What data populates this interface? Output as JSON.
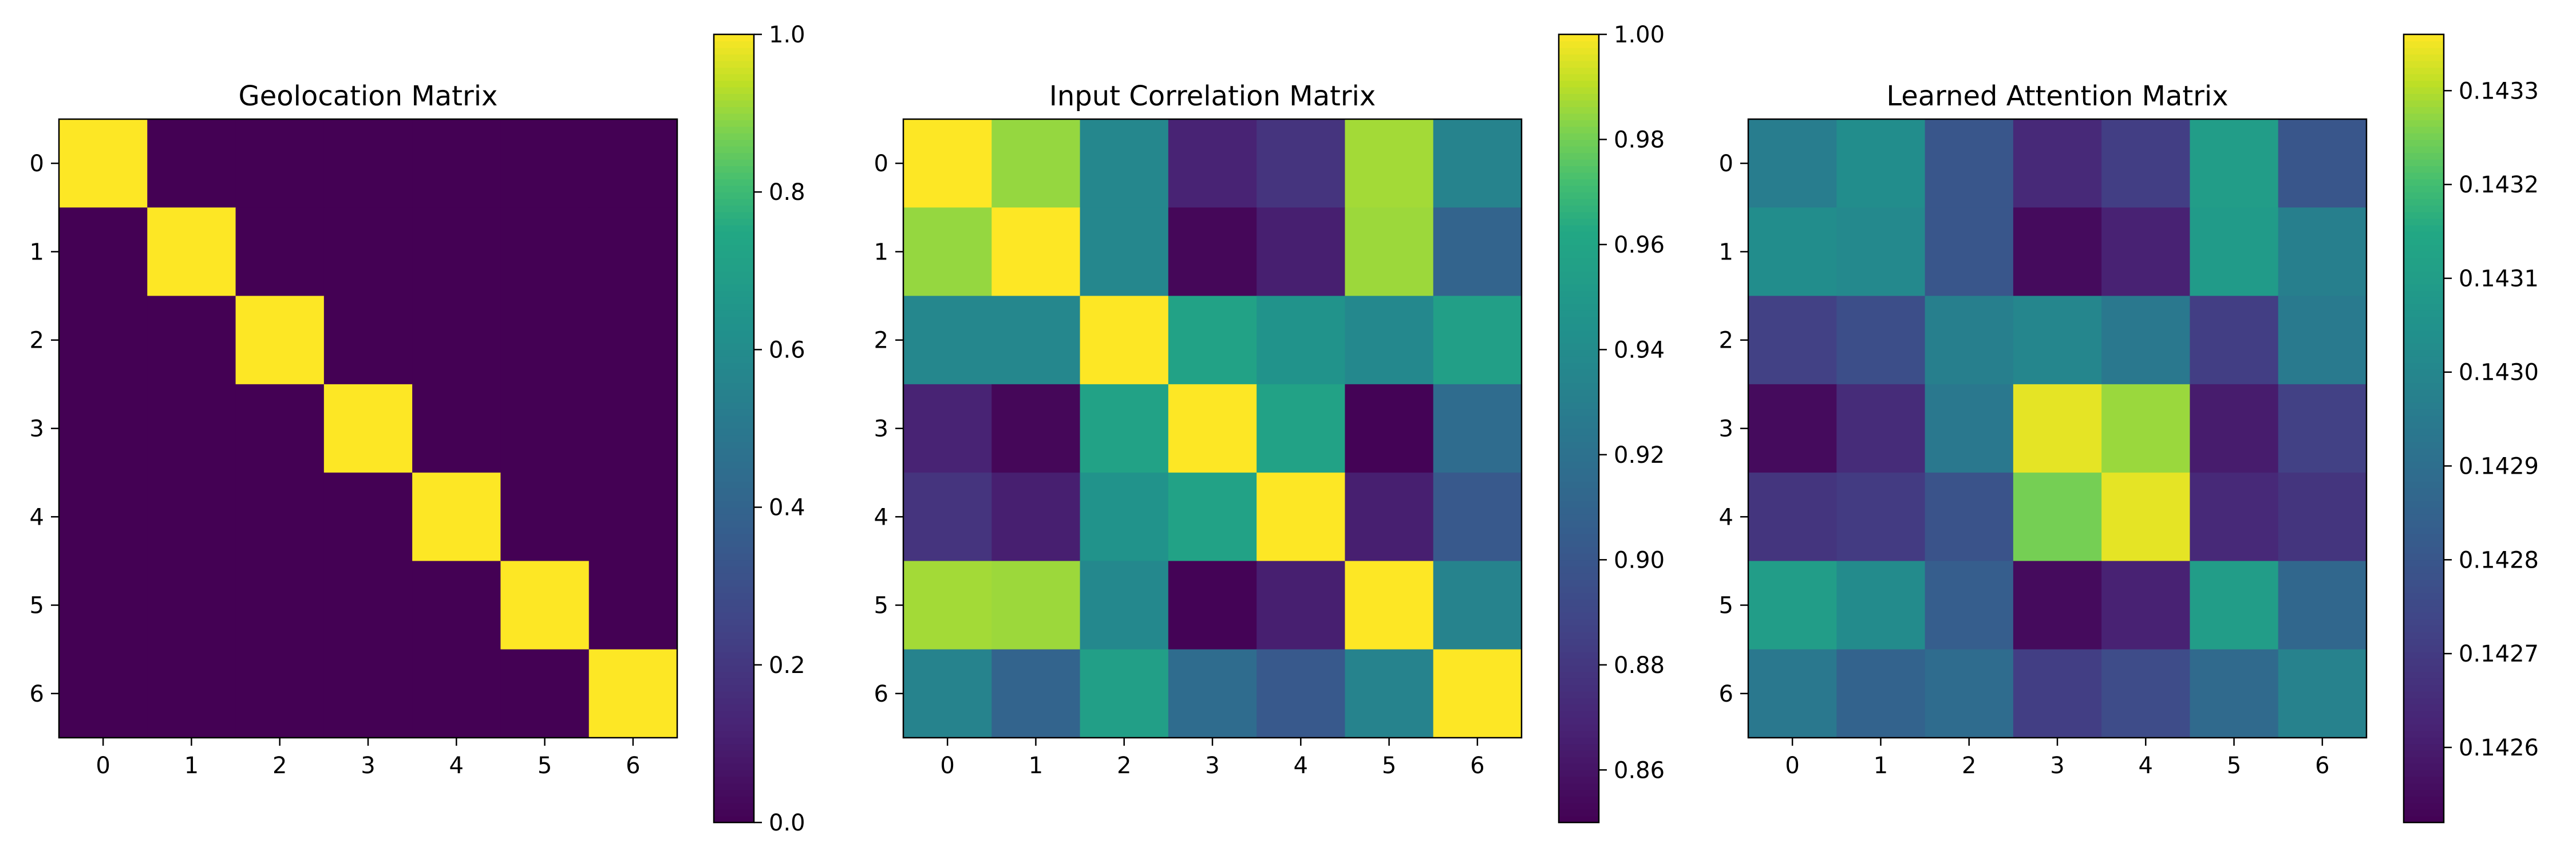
{
  "chart_data": [
    {
      "type": "heatmap",
      "title": "Geolocation Matrix",
      "x_ticks": [
        "0",
        "1",
        "2",
        "3",
        "4",
        "5",
        "6"
      ],
      "y_ticks": [
        "0",
        "1",
        "2",
        "3",
        "4",
        "5",
        "6"
      ],
      "values": [
        [
          1,
          0,
          0,
          0,
          0,
          0,
          0
        ],
        [
          0,
          1,
          0,
          0,
          0,
          0,
          0
        ],
        [
          0,
          0,
          1,
          0,
          0,
          0,
          0
        ],
        [
          0,
          0,
          0,
          1,
          0,
          0,
          0
        ],
        [
          0,
          0,
          0,
          0,
          1,
          0,
          0
        ],
        [
          0,
          0,
          0,
          0,
          0,
          1,
          0
        ],
        [
          0,
          0,
          0,
          0,
          0,
          0,
          1
        ]
      ],
      "colormap": "viridis",
      "vmin": 0.0,
      "vmax": 1.0,
      "colorbar_ticks": [
        0.0,
        0.2,
        0.4,
        0.6,
        0.8,
        1.0
      ],
      "colorbar_tick_labels": [
        "0.0",
        "0.2",
        "0.4",
        "0.6",
        "0.8",
        "1.0"
      ]
    },
    {
      "type": "heatmap",
      "title": "Input Correlation Matrix",
      "x_ticks": [
        "0",
        "1",
        "2",
        "3",
        "4",
        "5",
        "6"
      ],
      "y_ticks": [
        "0",
        "1",
        "2",
        "3",
        "4",
        "5",
        "6"
      ],
      "values": [
        [
          1.0,
          0.985,
          0.936,
          0.868,
          0.878,
          0.987,
          0.933
        ],
        [
          0.985,
          1.0,
          0.936,
          0.853,
          0.866,
          0.986,
          0.91
        ],
        [
          0.936,
          0.936,
          1.0,
          0.958,
          0.945,
          0.937,
          0.955
        ],
        [
          0.868,
          0.853,
          0.958,
          1.0,
          0.958,
          0.851,
          0.916
        ],
        [
          0.878,
          0.866,
          0.945,
          0.958,
          1.0,
          0.866,
          0.902
        ],
        [
          0.987,
          0.986,
          0.937,
          0.851,
          0.866,
          1.0,
          0.933
        ],
        [
          0.933,
          0.91,
          0.955,
          0.916,
          0.902,
          0.933,
          1.0
        ]
      ],
      "colormap": "viridis",
      "vmin": 0.85,
      "vmax": 1.0,
      "colorbar_ticks": [
        0.86,
        0.88,
        0.9,
        0.92,
        0.94,
        0.96,
        0.98,
        1.0
      ],
      "colorbar_tick_labels": [
        "0.86",
        "0.88",
        "0.90",
        "0.92",
        "0.94",
        "0.96",
        "0.98",
        "1.00"
      ]
    },
    {
      "type": "heatmap",
      "title": "Learned Attention Matrix",
      "x_ticks": [
        "0",
        "1",
        "2",
        "3",
        "4",
        "5",
        "6"
      ],
      "y_ticks": [
        "0",
        "1",
        "2",
        "3",
        "4",
        "5",
        "6"
      ],
      "values": [
        [
          0.14296,
          0.14303,
          0.1428,
          0.14264,
          0.14271,
          0.1431,
          0.1428
        ],
        [
          0.14303,
          0.14301,
          0.1428,
          0.14255,
          0.14262,
          0.14309,
          0.14297
        ],
        [
          0.14272,
          0.14277,
          0.14297,
          0.143,
          0.14294,
          0.14271,
          0.14295
        ],
        [
          0.14255,
          0.14265,
          0.14294,
          0.14334,
          0.14328,
          0.1426,
          0.14272
        ],
        [
          0.14268,
          0.1427,
          0.14279,
          0.14325,
          0.14334,
          0.14264,
          0.14268
        ],
        [
          0.1431,
          0.14302,
          0.14283,
          0.14255,
          0.14262,
          0.1431,
          0.14287
        ],
        [
          0.14294,
          0.14285,
          0.14289,
          0.14271,
          0.14276,
          0.14288,
          0.14298
        ]
      ],
      "colormap": "viridis",
      "vmin": 0.14252,
      "vmax": 0.14336,
      "colorbar_ticks": [
        0.1426,
        0.1427,
        0.1428,
        0.1429,
        0.143,
        0.1431,
        0.1432,
        0.1433
      ],
      "colorbar_tick_labels": [
        "0.1426",
        "0.1427",
        "0.1428",
        "0.1429",
        "0.1430",
        "0.1431",
        "0.1432",
        "0.1433"
      ]
    }
  ]
}
